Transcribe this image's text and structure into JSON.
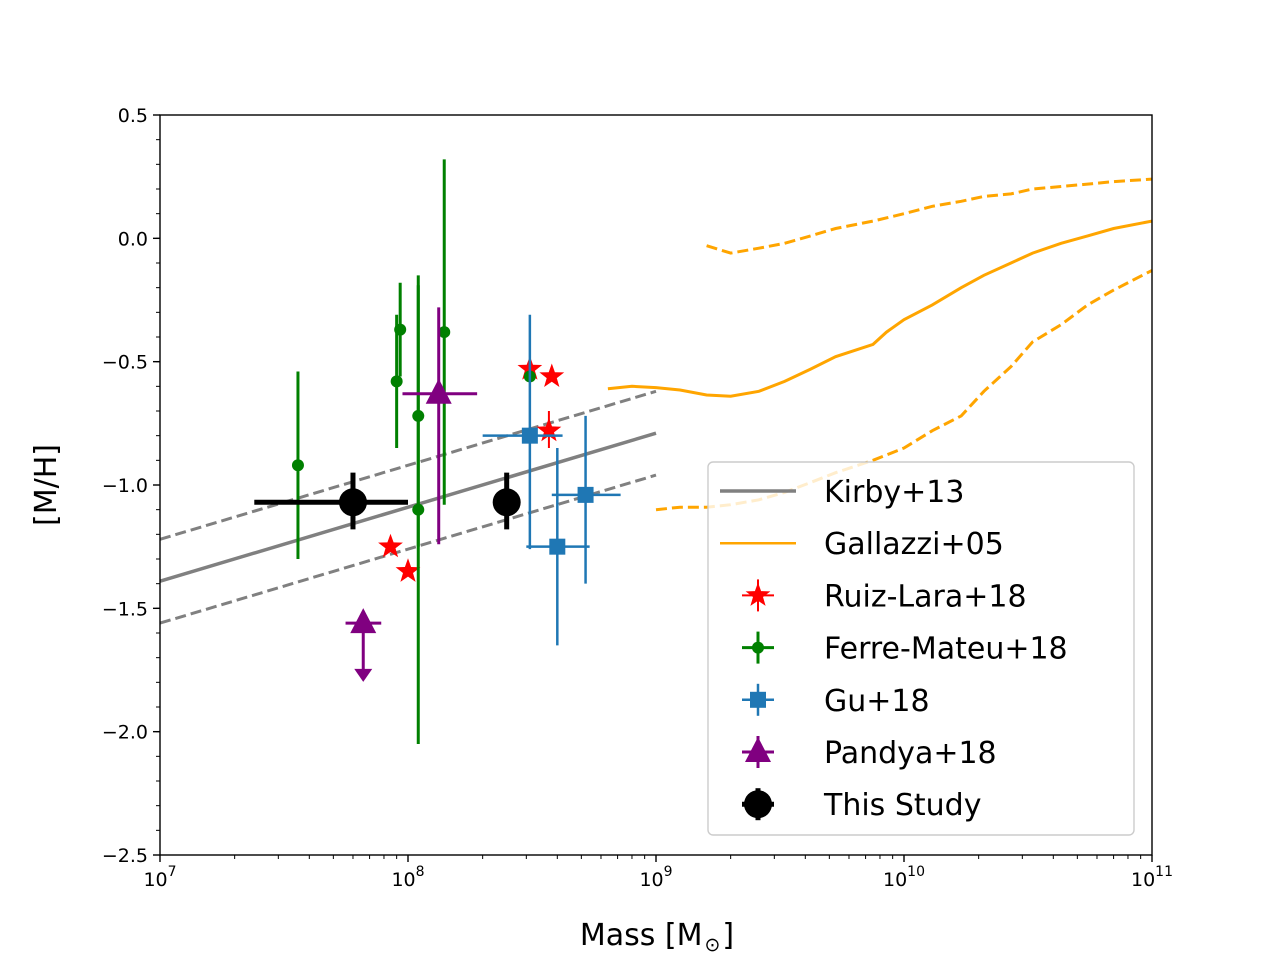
{
  "chart_data": {
    "type": "scatter",
    "xscale": "log",
    "xlim": [
      10000000,
      100000000000
    ],
    "ylim": [
      -2.5,
      0.5
    ],
    "xlabel": "Mass [M",
    "xlabel_sub": "⊙",
    "xlabel_end": "]",
    "ylabel": "[M/H]",
    "x_ticks": [
      {
        "value": 10000000,
        "base": "10",
        "exp": "7"
      },
      {
        "value": 100000000,
        "base": "10",
        "exp": "8"
      },
      {
        "value": 1000000000,
        "base": "10",
        "exp": "9"
      },
      {
        "value": 10000000000,
        "base": "10",
        "exp": "10"
      },
      {
        "value": 100000000000,
        "base": "10",
        "exp": "11"
      }
    ],
    "y_ticks": [
      {
        "value": 0.5,
        "label": "0.5"
      },
      {
        "value": 0.0,
        "label": "0.0"
      },
      {
        "value": -0.5,
        "label": "−0.5"
      },
      {
        "value": -1.0,
        "label": "−1.0"
      },
      {
        "value": -1.5,
        "label": "−1.5"
      },
      {
        "value": -2.0,
        "label": "−2.0"
      },
      {
        "value": -2.5,
        "label": "−2.5"
      }
    ],
    "legend_position": "lower-right",
    "lines": [
      {
        "name": "Kirby+13",
        "color": "#808080",
        "style": "solid",
        "x": [
          10000000,
          1000000000
        ],
        "y": [
          -1.39,
          -0.79
        ]
      },
      {
        "name": "Kirby+13 upper",
        "color": "#808080",
        "style": "dashed",
        "x": [
          10000000,
          1000000000
        ],
        "y": [
          -1.22,
          -0.62
        ]
      },
      {
        "name": "Kirby+13 lower",
        "color": "#808080",
        "style": "dashed",
        "x": [
          10000000,
          1000000000
        ],
        "y": [
          -1.56,
          -0.96
        ]
      },
      {
        "name": "Gallazzi+05",
        "color": "#ffa500",
        "style": "solid",
        "x": [
          640000000,
          800000000,
          1000000000,
          1250000000,
          1600000000,
          2000000000,
          2600000000,
          3300000000,
          4200000000,
          5300000000,
          7500000000,
          8500000000,
          10000000000,
          13000000000,
          17000000000,
          21000000000,
          27000000000,
          33000000000,
          43000000000,
          55000000000,
          70000000000,
          100000000000
        ],
        "y": [
          -0.61,
          -0.6,
          -0.605,
          -0.615,
          -0.635,
          -0.64,
          -0.62,
          -0.58,
          -0.53,
          -0.48,
          -0.43,
          -0.38,
          -0.33,
          -0.27,
          -0.2,
          -0.15,
          -0.1,
          -0.06,
          -0.02,
          0.01,
          0.04,
          0.07
        ]
      },
      {
        "name": "Gallazzi+05 upper",
        "color": "#ffa500",
        "style": "dashed",
        "x": [
          1600000000,
          2000000000,
          2600000000,
          3300000000,
          4200000000,
          5300000000,
          7500000000,
          10000000000,
          13000000000,
          17000000000,
          21000000000,
          27000000000,
          33000000000,
          43000000000,
          55000000000,
          70000000000,
          100000000000
        ],
        "y": [
          -0.03,
          -0.06,
          -0.04,
          -0.02,
          0.01,
          0.04,
          0.07,
          0.1,
          0.13,
          0.15,
          0.17,
          0.18,
          0.2,
          0.21,
          0.22,
          0.23,
          0.24
        ]
      },
      {
        "name": "Gallazzi+05 lower",
        "color": "#ffa500",
        "style": "dashed",
        "x": [
          1000000000,
          1250000000,
          1600000000,
          2000000000,
          2600000000,
          3300000000,
          4200000000,
          5300000000,
          7500000000,
          10000000000,
          13000000000,
          17000000000,
          21000000000,
          27000000000,
          33000000000,
          43000000000,
          55000000000,
          70000000000,
          100000000000
        ],
        "y": [
          -1.1,
          -1.09,
          -1.09,
          -1.08,
          -1.06,
          -1.03,
          -0.99,
          -0.95,
          -0.9,
          -0.85,
          -0.78,
          -0.72,
          -0.62,
          -0.52,
          -0.42,
          -0.35,
          -0.27,
          -0.21,
          -0.13
        ]
      }
    ],
    "series": [
      {
        "name": "Ruiz-Lara+18",
        "color": "#ff0000",
        "marker": "star",
        "points": [
          {
            "x": 85000000,
            "y": -1.25
          },
          {
            "x": 100000000,
            "y": -1.35
          },
          {
            "x": 310000000,
            "y": -0.53
          },
          {
            "x": 380000000,
            "y": -0.56
          },
          {
            "x": 370000000,
            "y": -0.78,
            "yerr": [
              0.07,
              0.08
            ]
          }
        ]
      },
      {
        "name": "Ferre-Mateu+18",
        "color": "#008000",
        "marker": "circle",
        "points": [
          {
            "x": 36000000,
            "y": -0.92,
            "yerr": [
              0.38,
              0.38
            ]
          },
          {
            "x": 90000000,
            "y": -0.58,
            "yerr": [
              0.27,
              0.27
            ]
          },
          {
            "x": 93000000,
            "y": -0.37,
            "yerr": [
              0.19,
              0.19
            ]
          },
          {
            "x": 110000000,
            "y": -0.72,
            "yerr": [
              0.53,
              0.53
            ]
          },
          {
            "x": 110000000,
            "y": -1.1,
            "yerr": [
              0.95,
              0.95
            ]
          },
          {
            "x": 140000000,
            "y": -0.38,
            "yerr": [
              0.7,
              0.7
            ]
          },
          {
            "x": 310000000,
            "y": -0.56,
            "yerr": [
              0.02,
              0.02
            ]
          }
        ]
      },
      {
        "name": "Gu+18",
        "color": "#1f77b4",
        "marker": "square",
        "points": [
          {
            "x": 310000000,
            "y": -0.8,
            "xerr_range": [
              200000000,
              420000000
            ],
            "yerr": [
              0.46,
              0.49
            ]
          },
          {
            "x": 400000000,
            "y": -1.25,
            "xerr_range": [
              300000000,
              540000000
            ],
            "yerr": [
              0.4,
              0.4
            ]
          },
          {
            "x": 520000000,
            "y": -1.04,
            "xerr_range": [
              380000000,
              720000000
            ],
            "yerr": [
              0.36,
              0.32
            ]
          }
        ]
      },
      {
        "name": "Pandya+18",
        "color": "#800080",
        "marker": "triangle",
        "points": [
          {
            "x": 66000000,
            "y": -1.56,
            "xerr_range": [
              56000000,
              78000000
            ],
            "upper_limit": true,
            "arrow_to": -1.79
          },
          {
            "x": 133000000,
            "y": -0.63,
            "xerr_range": [
              95000000,
              190000000
            ],
            "yerr": [
              0.61,
              0.35
            ]
          }
        ]
      },
      {
        "name": "This Study",
        "color": "#000000",
        "marker": "circle-large",
        "points": [
          {
            "x": 60000000,
            "y": -1.07,
            "xerr_range": [
              24000000,
              100000000
            ],
            "yerr": [
              0.11,
              0.12
            ]
          },
          {
            "x": 250000000,
            "y": -1.07,
            "yerr": [
              0.11,
              0.12
            ]
          }
        ]
      }
    ]
  },
  "legend": [
    {
      "label": "Kirby+13",
      "color": "#808080",
      "kind": "line"
    },
    {
      "label": "Gallazzi+05",
      "color": "#ffa500",
      "kind": "line-thin"
    },
    {
      "label": "Ruiz-Lara+18",
      "color": "#ff0000",
      "kind": "star"
    },
    {
      "label": "Ferre-Mateu+18",
      "color": "#008000",
      "kind": "circle"
    },
    {
      "label": "Gu+18",
      "color": "#1f77b4",
      "kind": "square"
    },
    {
      "label": "Pandya+18",
      "color": "#800080",
      "kind": "triangle"
    },
    {
      "label": "This Study",
      "color": "#000000",
      "kind": "circle-large"
    }
  ]
}
